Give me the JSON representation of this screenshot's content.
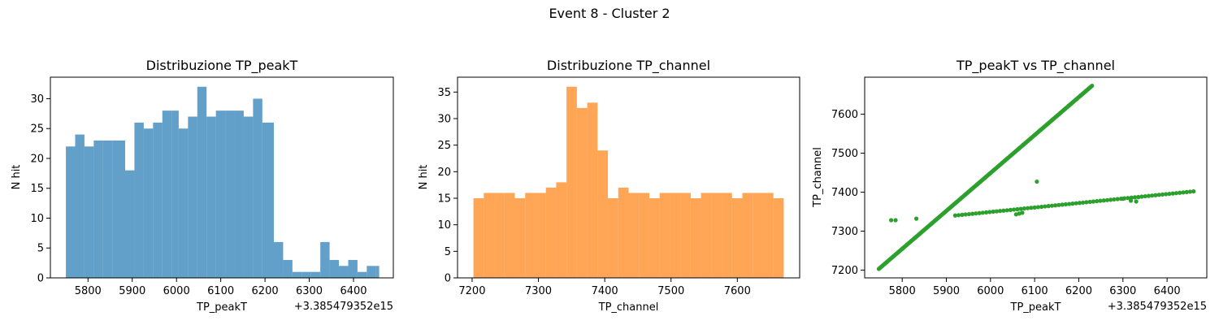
{
  "figure": {
    "title": "Event 8 - Cluster 2"
  },
  "chart_data": [
    {
      "type": "bar",
      "title": "Distribuzione TP_peakT",
      "xlabel": "TP_peakT",
      "ylabel": "N hit",
      "offset_text": "+3.385479352e15",
      "color": "#1f77b4",
      "xlim": [
        5715,
        6490
      ],
      "ylim": [
        0,
        33.6
      ],
      "xticks": [
        5800,
        5900,
        6000,
        6100,
        6200,
        6300,
        6400
      ],
      "yticks": [
        0,
        5,
        10,
        15,
        20,
        25,
        30
      ],
      "bins": [
        [
          5750,
          5771,
          22
        ],
        [
          5771,
          5792,
          24
        ],
        [
          5792,
          5813,
          22
        ],
        [
          5813,
          5834,
          23
        ],
        [
          5834,
          5855,
          23
        ],
        [
          5855,
          5884,
          23
        ],
        [
          5884,
          5905,
          18
        ],
        [
          5905,
          5926,
          26
        ],
        [
          5926,
          5947,
          25
        ],
        [
          5947,
          5968,
          26
        ],
        [
          5968,
          5989,
          28
        ],
        [
          5989,
          6005,
          28
        ],
        [
          6005,
          6026,
          25
        ],
        [
          6026,
          6047,
          27
        ],
        [
          6047,
          6068,
          32
        ],
        [
          6068,
          6089,
          27
        ],
        [
          6089,
          6110,
          28
        ],
        [
          6110,
          6131,
          28
        ],
        [
          6131,
          6152,
          28
        ],
        [
          6152,
          6173,
          27
        ],
        [
          6173,
          6194,
          30
        ],
        [
          6194,
          6220,
          26
        ],
        [
          6220,
          6241,
          6
        ],
        [
          6241,
          6262,
          3
        ],
        [
          6262,
          6283,
          1
        ],
        [
          6283,
          6304,
          1
        ],
        [
          6304,
          6325,
          1
        ],
        [
          6325,
          6346,
          6
        ],
        [
          6346,
          6367,
          3
        ],
        [
          6367,
          6388,
          2
        ],
        [
          6388,
          6409,
          3
        ],
        [
          6409,
          6430,
          1
        ],
        [
          6430,
          6451,
          2
        ],
        [
          6451,
          6458,
          2
        ]
      ]
    },
    {
      "type": "bar",
      "title": "Distribuzione TP_channel",
      "xlabel": "TP_channel",
      "ylabel": "N hit",
      "color": "#ff7f0e",
      "xlim": [
        7178,
        7694
      ],
      "ylim": [
        0,
        37.8
      ],
      "xticks": [
        7200,
        7300,
        7400,
        7500,
        7600
      ],
      "yticks": [
        0,
        5,
        10,
        15,
        20,
        25,
        30,
        35
      ],
      "bins": [
        [
          7202,
          7217.6,
          15
        ],
        [
          7217.6,
          7233.2,
          16
        ],
        [
          7233.2,
          7248.8,
          16
        ],
        [
          7248.8,
          7264.4,
          16
        ],
        [
          7264.4,
          7280,
          15
        ],
        [
          7280,
          7295.6,
          16
        ],
        [
          7295.6,
          7311.2,
          16
        ],
        [
          7311.2,
          7326.8,
          17
        ],
        [
          7326.8,
          7342.4,
          18
        ],
        [
          7342.4,
          7358,
          36
        ],
        [
          7358,
          7373.6,
          32
        ],
        [
          7373.6,
          7389.2,
          33
        ],
        [
          7389.2,
          7404.8,
          24
        ],
        [
          7404.8,
          7420.4,
          15
        ],
        [
          7420.4,
          7436,
          17
        ],
        [
          7436,
          7451.6,
          16
        ],
        [
          7451.6,
          7467.2,
          16
        ],
        [
          7467.2,
          7482.8,
          15
        ],
        [
          7482.8,
          7498.4,
          16
        ],
        [
          7498.4,
          7514,
          16
        ],
        [
          7514,
          7529.6,
          16
        ],
        [
          7529.6,
          7545.2,
          15
        ],
        [
          7545.2,
          7560.8,
          16
        ],
        [
          7560.8,
          7576.4,
          16
        ],
        [
          7576.4,
          7592,
          16
        ],
        [
          7592,
          7607.6,
          15
        ],
        [
          7607.6,
          7623.2,
          16
        ],
        [
          7623.2,
          7638.8,
          16
        ],
        [
          7638.8,
          7654.4,
          16
        ],
        [
          7654.4,
          7670,
          15
        ]
      ]
    },
    {
      "type": "scatter",
      "title": "TP_peakT vs TP_channel",
      "xlabel": "TP_peakT",
      "ylabel": "TP_channel",
      "offset_text": "+3.385479352e15",
      "color": "#2ca02c",
      "xlim": [
        5715,
        6490
      ],
      "ylim": [
        7180,
        7695
      ],
      "xticks": [
        5800,
        5900,
        6000,
        6100,
        6200,
        6300,
        6400
      ],
      "yticks": [
        7200,
        7300,
        7400,
        7500,
        7600
      ],
      "segments": [
        {
          "from": [
            5747,
            7203
          ],
          "to": [
            6230,
            7673
          ],
          "count": 220
        },
        {
          "from": [
            5920,
            7340
          ],
          "to": [
            6460,
            7402
          ],
          "count": 70
        }
      ],
      "points": [
        [
          5775,
          7328
        ],
        [
          5785,
          7328
        ],
        [
          5832,
          7332
        ],
        [
          6105,
          7427
        ],
        [
          6058,
          7343
        ],
        [
          6065,
          7345
        ],
        [
          6072,
          7347
        ],
        [
          6300,
          7383
        ],
        [
          6318,
          7378
        ],
        [
          6330,
          7376
        ],
        [
          6335,
          7387
        ]
      ]
    }
  ]
}
